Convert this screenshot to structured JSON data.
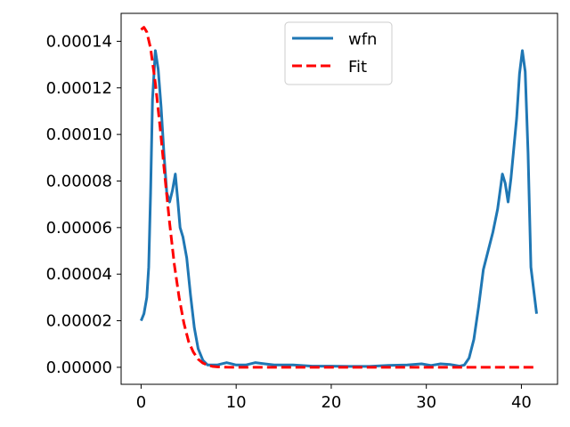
{
  "chart_data": {
    "type": "line",
    "title": "",
    "xlabel": "",
    "ylabel": "",
    "xlim": [
      -2.1,
      43.8
    ],
    "ylim": [
      -7.3e-06,
      0.000152
    ],
    "xticks": [
      0,
      10,
      20,
      30,
      40
    ],
    "xtick_labels": [
      "0",
      "10",
      "20",
      "30",
      "40"
    ],
    "yticks": [
      0,
      2e-05,
      4e-05,
      6e-05,
      8e-05,
      0.0001,
      0.00012,
      0.00014
    ],
    "ytick_labels": [
      "0.00000",
      "0.00002",
      "0.00004",
      "0.00006",
      "0.00008",
      "0.00010",
      "0.00012",
      "0.00014"
    ],
    "grid": false,
    "legend_position": "top-center",
    "series": [
      {
        "name": "wfn",
        "color": "#1f77b4",
        "style": "solid",
        "x": [
          0.0,
          0.3,
          0.6,
          0.8,
          1.0,
          1.2,
          1.5,
          1.8,
          2.1,
          2.4,
          2.7,
          3.0,
          3.3,
          3.6,
          3.85,
          4.1,
          4.4,
          4.8,
          5.2,
          5.6,
          6.0,
          6.5,
          7.0,
          7.5,
          8.0,
          8.5,
          9.0,
          9.5,
          10.0,
          11.0,
          12.0,
          13.0,
          14.0,
          16.0,
          18.0,
          20.0,
          22.0,
          24.0,
          26.0,
          28.0,
          29.5,
          30.5,
          31.5,
          32.5,
          33.5,
          34.0,
          34.5,
          35.0,
          35.5,
          36.0,
          36.5,
          37.0,
          37.5,
          38.0,
          38.3,
          38.6,
          38.9,
          39.2,
          39.5,
          39.8,
          40.1,
          40.4,
          40.7,
          41.0,
          41.3,
          41.6
        ],
        "y": [
          2e-05,
          2.3e-05,
          3e-05,
          4.3e-05,
          7.5e-05,
          0.000115,
          0.000136,
          0.000128,
          0.000112,
          9.2e-05,
          7.5e-05,
          7.1e-05,
          7.6e-05,
          8.3e-05,
          7.2e-05,
          6e-05,
          5.6e-05,
          4.7e-05,
          3.1e-05,
          1.7e-05,
          8e-06,
          3e-06,
          1e-06,
          1e-06,
          1e-06,
          1.5e-06,
          2e-06,
          1.5e-06,
          1e-06,
          1e-06,
          2e-06,
          1.5e-06,
          1e-06,
          1e-06,
          5e-07,
          5e-07,
          4e-07,
          4e-07,
          8e-07,
          1e-06,
          1.5e-06,
          8e-07,
          1.5e-06,
          1.2e-06,
          5e-07,
          1e-06,
          4e-06,
          1.2e-05,
          2.6e-05,
          4.2e-05,
          5e-05,
          5.8e-05,
          6.8e-05,
          8.3e-05,
          7.9e-05,
          7.1e-05,
          8.1e-05,
          9.4e-05,
          0.000107,
          0.000126,
          0.000136,
          0.000127,
          9.2e-05,
          4.3e-05,
          3.3e-05,
          2.3e-05
        ]
      },
      {
        "name": "Fit",
        "color": "#ff0000",
        "style": "dashed",
        "x": [
          0.0,
          0.3,
          0.6,
          1.0,
          1.5,
          2.0,
          2.5,
          3.0,
          3.5,
          4.0,
          4.5,
          5.0,
          5.5,
          6.0,
          6.5,
          7.0,
          7.5,
          8.0,
          9.0,
          10.0,
          15.0,
          20.0,
          25.0,
          30.0,
          35.0,
          41.6
        ],
        "y": [
          0.000145,
          0.000146,
          0.000144,
          0.000137,
          0.000122,
          0.000103,
          8.2e-05,
          6.2e-05,
          4.4e-05,
          3e-05,
          1.9e-05,
          1.1e-05,
          6.5e-06,
          3.5e-06,
          1.8e-06,
          9e-07,
          4e-07,
          2e-07,
          3e-08,
          0.0,
          0.0,
          0.0,
          0.0,
          0.0,
          0.0,
          0.0
        ]
      }
    ]
  }
}
